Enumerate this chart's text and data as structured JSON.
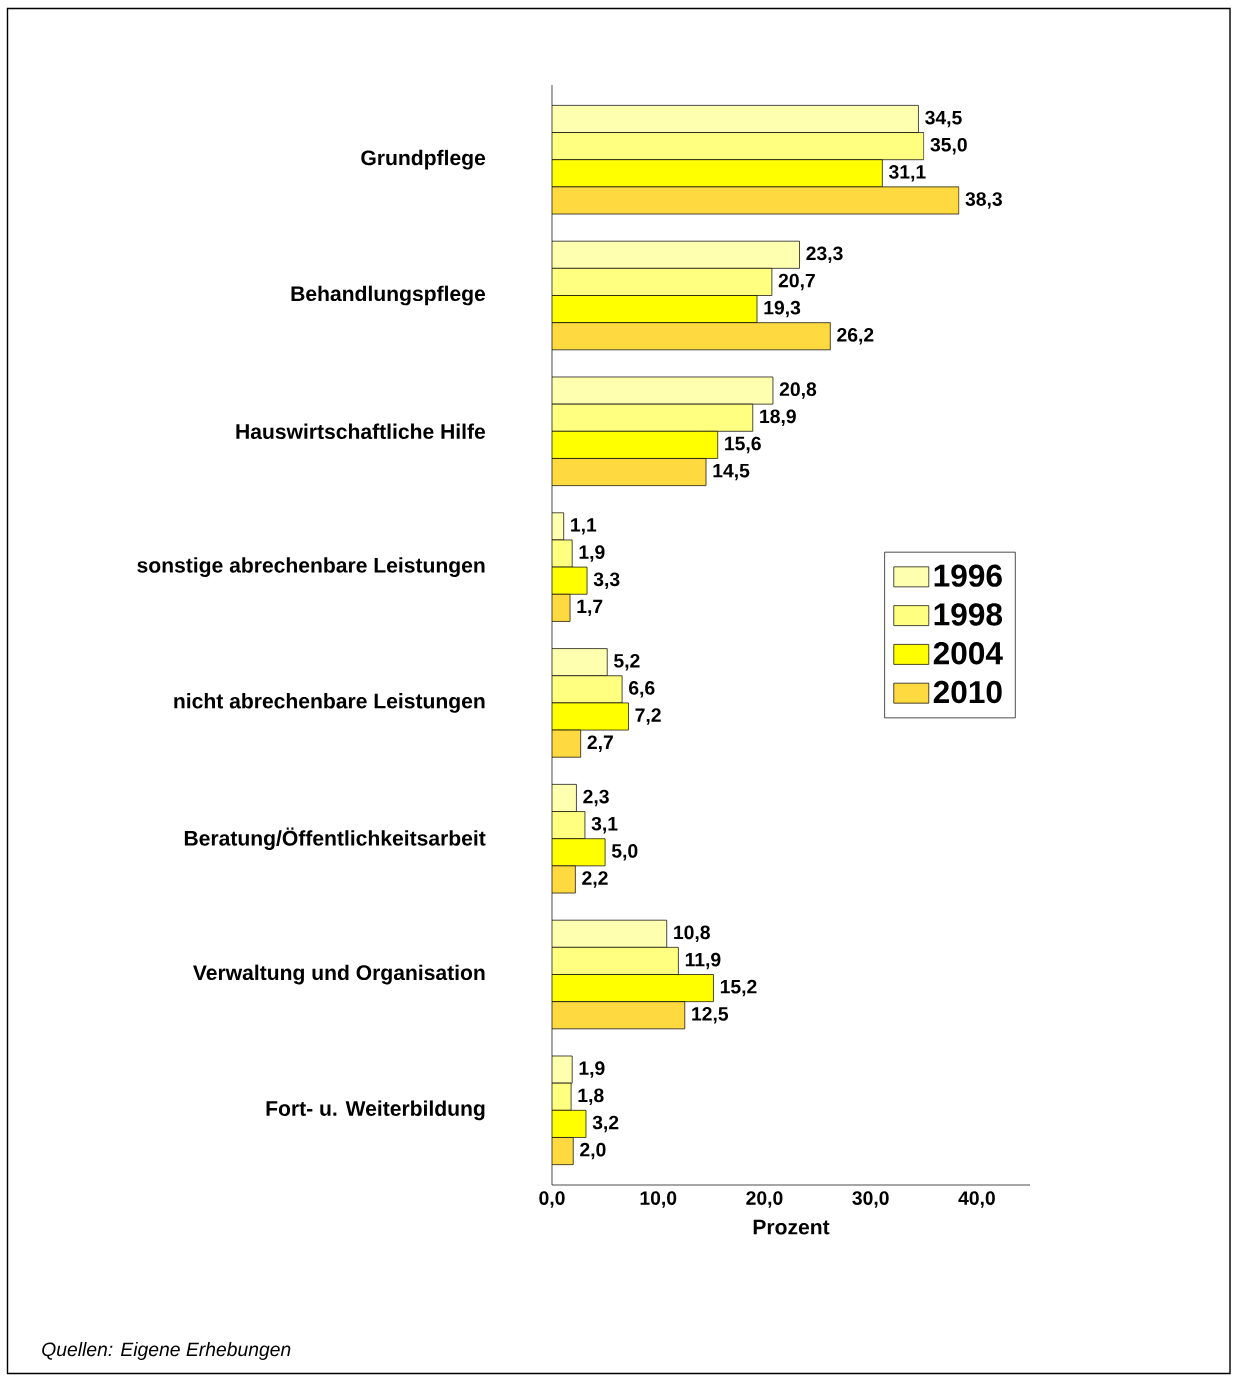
{
  "chart_data": {
    "type": "bar",
    "orientation": "horizontal",
    "xlabel": "Prozent",
    "categories": [
      "Grundpflege",
      "Behandlungspflege",
      "Hauswirtschaftliche Hilfe",
      "sonstige abrechenbare Leistungen",
      "nicht abrechenbare Leistungen",
      "Beratung/Öffentlichkeitsarbeit",
      "Verwaltung und Organisation",
      "Fort- u. Weiterbildung"
    ],
    "series": [
      {
        "name": "1996",
        "color": "#ffffb0",
        "values": [
          34.5,
          23.3,
          20.8,
          1.1,
          5.2,
          2.3,
          10.8,
          1.9
        ],
        "value_labels": [
          "34,5",
          "23,3",
          "20,8",
          "1,1",
          "5,2",
          "2,3",
          "10,8",
          "1,9"
        ]
      },
      {
        "name": "1998",
        "color": "#ffff80",
        "values": [
          35.0,
          20.7,
          18.9,
          1.9,
          6.6,
          3.1,
          11.9,
          1.8
        ],
        "value_labels": [
          "35,0",
          "20,7",
          "18,9",
          "1,9",
          "6,6",
          "3,1",
          "11,9",
          "1,8"
        ]
      },
      {
        "name": "2004",
        "color": "#ffff00",
        "values": [
          31.1,
          19.3,
          15.6,
          3.3,
          7.2,
          5.0,
          15.2,
          3.2
        ],
        "value_labels": [
          "31,1",
          "19,3",
          "15,6",
          "3,3",
          "7,2",
          "5,0",
          "15,2",
          "3,2"
        ]
      },
      {
        "name": "2010",
        "color": "#ffd940",
        "values": [
          38.3,
          26.2,
          14.5,
          1.7,
          2.7,
          2.2,
          12.5,
          2.0
        ],
        "value_labels": [
          "38,3",
          "26,2",
          "14,5",
          "1,7",
          "2,7",
          "2,2",
          "12,5",
          "2,0"
        ]
      }
    ],
    "xlim": [
      0,
      45
    ],
    "xticks": [
      {
        "value": 0,
        "label": "0,0"
      },
      {
        "value": 10,
        "label": "10,0"
      },
      {
        "value": 20,
        "label": "20,0"
      },
      {
        "value": 30,
        "label": "30,0"
      },
      {
        "value": 40,
        "label": "40,0"
      }
    ],
    "legend": "right",
    "grid": false,
    "annotations": [
      "Quellen: Eigene Erhebungen"
    ]
  }
}
